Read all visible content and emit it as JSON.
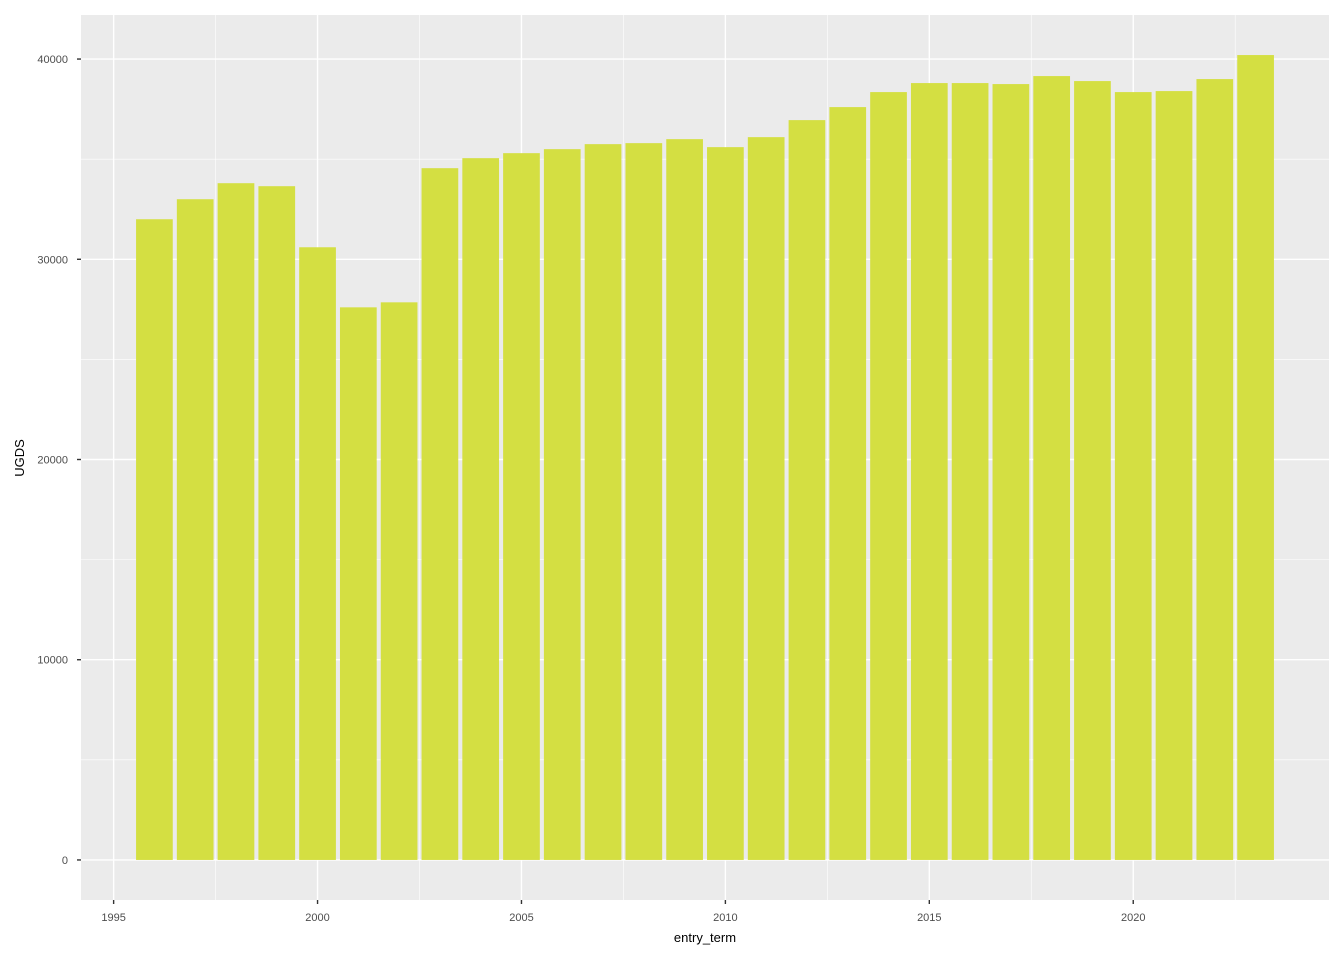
{
  "chart_data": {
    "type": "bar",
    "title": "",
    "xlabel": "entry_term",
    "ylabel": "UGDS",
    "x": [
      1996,
      1997,
      1998,
      1999,
      2000,
      2001,
      2002,
      2003,
      2004,
      2005,
      2006,
      2007,
      2008,
      2009,
      2010,
      2011,
      2012,
      2013,
      2014,
      2015,
      2016,
      2017,
      2018,
      2019,
      2020,
      2021,
      2022,
      2023
    ],
    "values": [
      32000,
      33000,
      33800,
      33650,
      30600,
      27600,
      27850,
      34550,
      35050,
      35300,
      35500,
      35750,
      35800,
      36000,
      35600,
      36100,
      36950,
      37600,
      38350,
      38800,
      38800,
      38750,
      39150,
      38900,
      38350,
      38400,
      39000,
      40200
    ],
    "xlim": [
      1994.2,
      2024.8
    ],
    "ylim": [
      -2000,
      42200
    ],
    "x_ticks": [
      "1995",
      "2000",
      "2005",
      "2010",
      "2015",
      "2020"
    ],
    "y_ticks": [
      "0",
      "10000",
      "20000",
      "30000",
      "40000"
    ],
    "grid": true,
    "bar_color": "#d4df42",
    "panel_color": "#ebebeb"
  }
}
